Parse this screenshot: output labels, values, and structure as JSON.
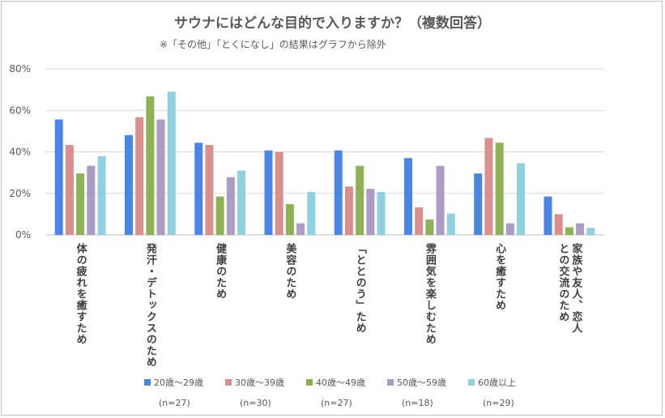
{
  "title": "サウナにはどんな目的で入りますか？（複数回答）",
  "subtitle": "※「その他」「とくになし」の結果はグラフから除外",
  "chart_data": {
    "type": "bar",
    "title": "サウナにはどんな目的で入りますか？（複数回答）",
    "subtitle": "※「その他」「とくになし」の結果はグラフから除外",
    "categories": [
      "体の疲れを癒すため",
      "発汗・デトックスのため",
      "健康のため",
      "美容のため",
      "「ととのう」ため",
      "雰囲気を楽しむため",
      "心を癒すため",
      "家族や友人、恋人|との交流のため"
    ],
    "series": [
      {
        "name": "20歳～29歳",
        "n": "(n=27)",
        "color": "#4A86E8",
        "values": [
          55.6,
          48.1,
          44.4,
          40.7,
          40.7,
          37.0,
          29.6,
          18.5
        ]
      },
      {
        "name": "30歳～39歳",
        "n": "(n=30)",
        "color": "#DA8F8D",
        "values": [
          43.3,
          56.7,
          43.3,
          40.0,
          23.3,
          13.3,
          46.7,
          10.0
        ]
      },
      {
        "name": "40歳～49歳",
        "n": "(n=27)",
        "color": "#8CB253",
        "values": [
          29.6,
          66.7,
          18.5,
          14.8,
          33.3,
          7.4,
          44.4,
          3.7
        ]
      },
      {
        "name": "50歳～59歳",
        "n": "(n=18)",
        "color": "#AB9CC6",
        "values": [
          33.3,
          55.6,
          27.8,
          5.6,
          22.2,
          33.3,
          5.6,
          5.6
        ]
      },
      {
        "name": "60歳以上",
        "n": "(n=29)",
        "color": "#8FD1E0",
        "values": [
          37.9,
          69.0,
          31.0,
          20.7,
          20.7,
          10.3,
          34.5,
          3.4
        ]
      }
    ],
    "yticks": [
      "0%",
      "20%",
      "40%",
      "60%",
      "80%"
    ],
    "ylim": [
      0,
      80
    ],
    "grid": true,
    "legend_position": "bottom"
  }
}
